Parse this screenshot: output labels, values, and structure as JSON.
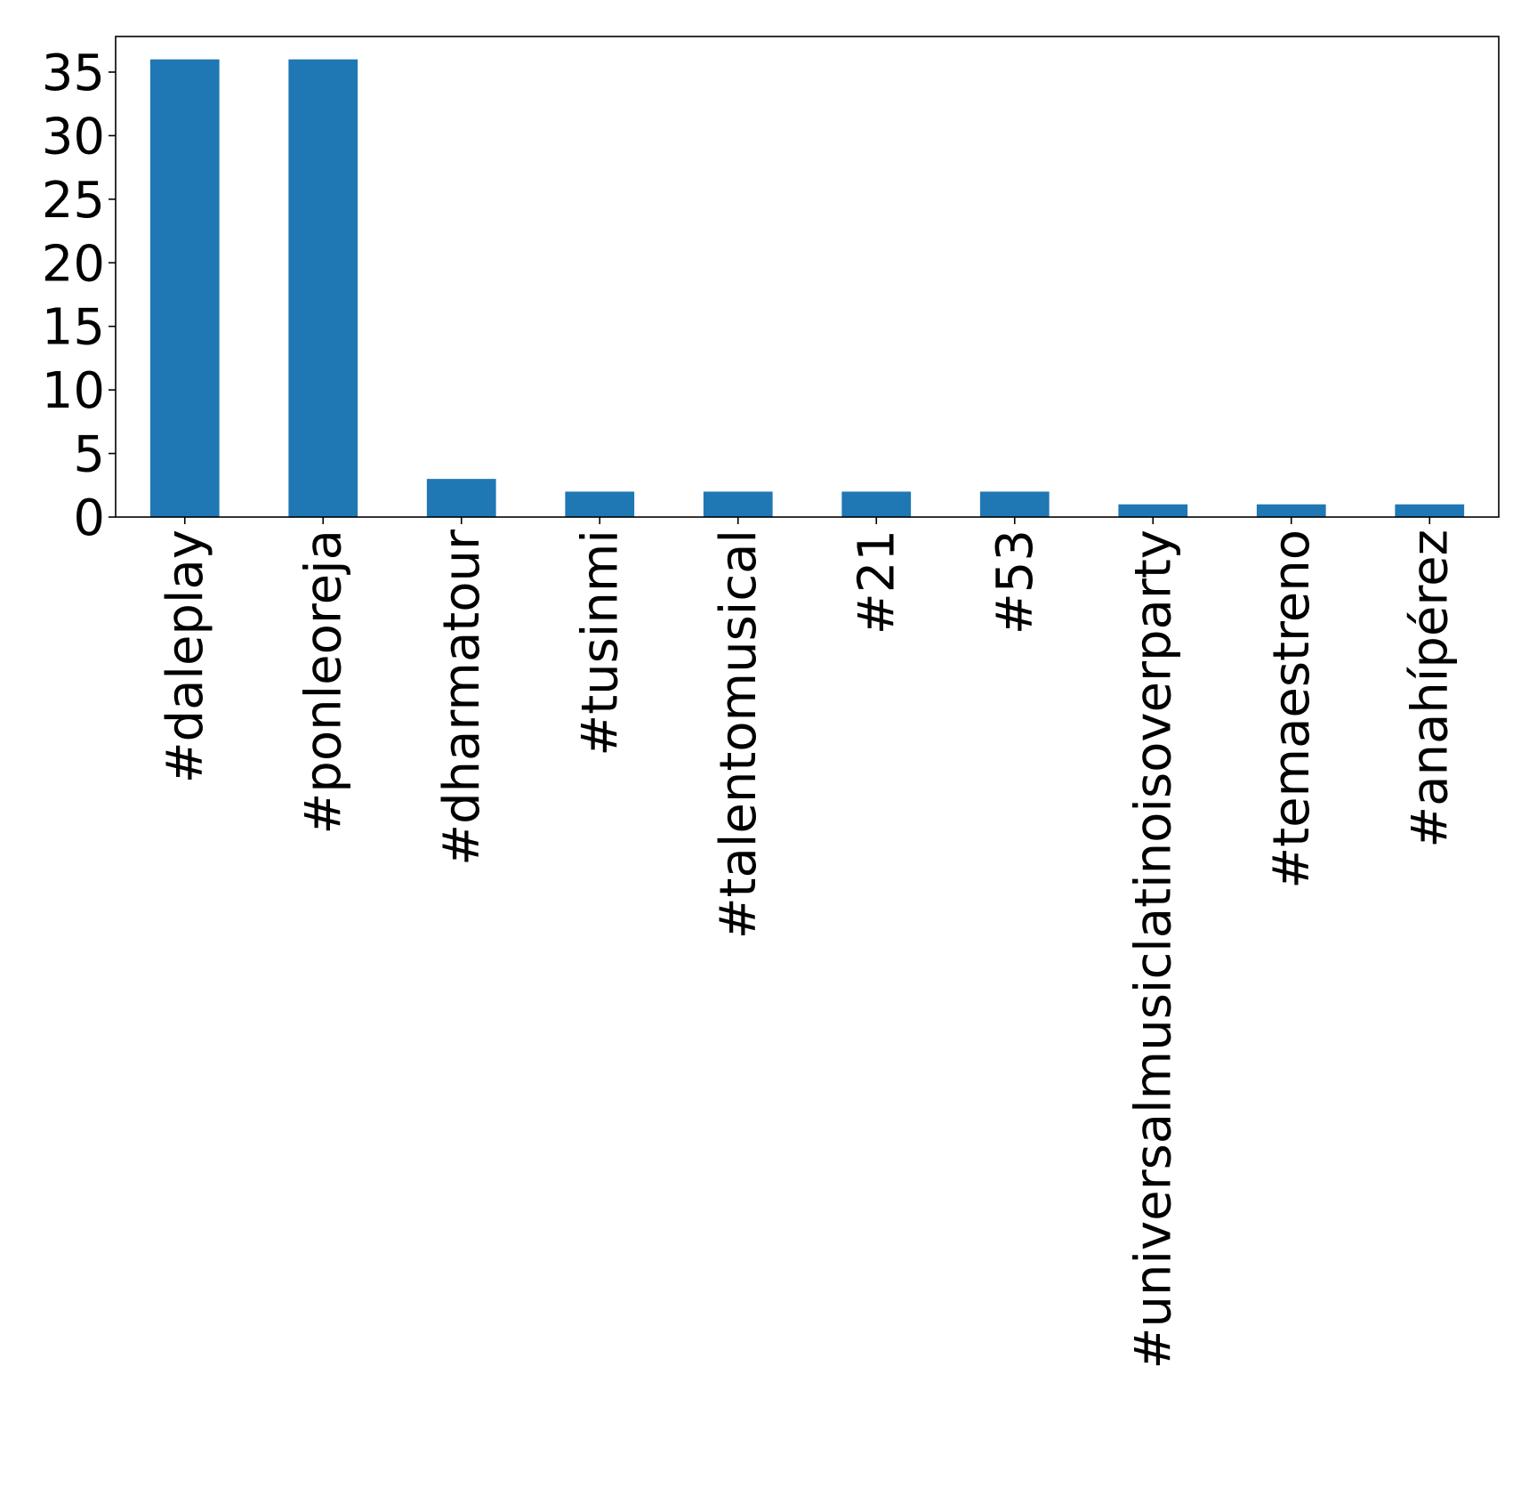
{
  "chart_data": {
    "type": "bar",
    "categories": [
      "#daleplay",
      "#ponleoreja",
      "#dharmatour",
      "#tusinmi",
      "#talentomusical",
      "#21",
      "#53",
      "#universalmusiclatinoisoverparty",
      "#temaestreno",
      "#anahípérez"
    ],
    "values": [
      36,
      36,
      3,
      2,
      2,
      2,
      2,
      1,
      1,
      1
    ],
    "ylim": [
      0,
      37.8
    ],
    "yticks": [
      0,
      5,
      10,
      15,
      20,
      25,
      30,
      35
    ],
    "title": "",
    "xlabel": "",
    "ylabel": "",
    "bar_color": "#1f77b4",
    "grid": false,
    "legend": false
  }
}
